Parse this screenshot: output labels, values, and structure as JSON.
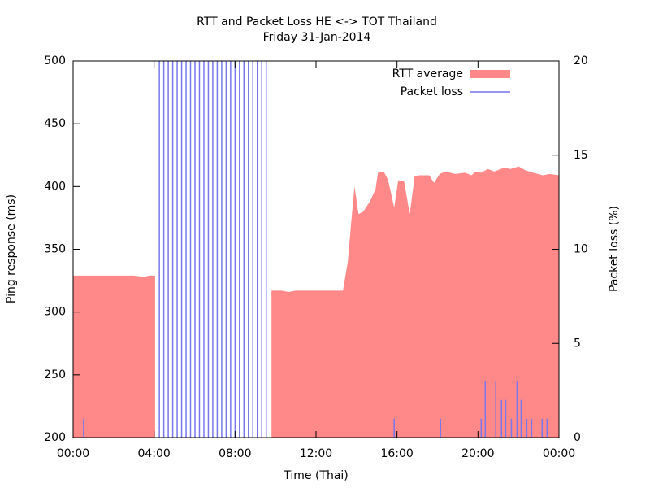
{
  "chart_data": {
    "type": "area",
    "title": "RTT and Packet Loss HE <-> TOT Thailand",
    "subtitle": "Friday 31-Jan-2014",
    "xlabel": "Time (Thai)",
    "ylabel": "Ping response (ms)",
    "y2label": "Packet loss (%)",
    "xlim": [
      0,
      24
    ],
    "xticks": [
      {
        "value": 0,
        "label": "00:00"
      },
      {
        "value": 4,
        "label": "04:00"
      },
      {
        "value": 8,
        "label": "08:00"
      },
      {
        "value": 12,
        "label": "12:00"
      },
      {
        "value": 16,
        "label": "16:00"
      },
      {
        "value": 20,
        "label": "20:00"
      },
      {
        "value": 24,
        "label": "00:00"
      }
    ],
    "ylim": [
      200,
      500
    ],
    "yticks": [
      200,
      250,
      300,
      350,
      400,
      450,
      500
    ],
    "y2lim": [
      0,
      20
    ],
    "y2ticks": [
      0,
      5,
      10,
      15,
      20
    ],
    "legend": "top-right",
    "series": [
      {
        "name": "RTT average",
        "color": "#ff8888",
        "type": "area",
        "x": [
          0,
          0.5,
          1,
          1.5,
          2,
          2.5,
          3,
          3.5,
          3.75,
          4.05,
          7,
          9.8,
          10.3,
          10.65,
          11,
          12,
          13.33,
          13.57,
          13.73,
          13.9,
          14.1,
          14.33,
          14.66,
          14.94,
          15.06,
          15.34,
          15.54,
          15.66,
          15.86,
          16.06,
          16.35,
          16.63,
          16.87,
          17.1,
          17.59,
          17.83,
          18.11,
          18.39,
          18.88,
          19.36,
          19.68,
          19.88,
          20.16,
          20.48,
          20.8,
          21.29,
          21.6,
          22.01,
          22.33,
          22.73,
          23.21,
          23.53,
          24
        ],
        "values": [
          329,
          329,
          329,
          329,
          329,
          329,
          329,
          328,
          329,
          329,
          null,
          317,
          317,
          316,
          317,
          317,
          317,
          340,
          370,
          400,
          378,
          380,
          388,
          398,
          411,
          412,
          406,
          398,
          383,
          405,
          404,
          378,
          408,
          409,
          409,
          403,
          410,
          412,
          410,
          411,
          409,
          412,
          411,
          414,
          412,
          415,
          414,
          416,
          413,
          411,
          409,
          410,
          409
        ]
      },
      {
        "name": "Packet loss",
        "color": "#7777ee",
        "type": "impulse",
        "axis": "y2",
        "x": [
          0.52,
          4.26,
          4.48,
          4.7,
          4.92,
          5.14,
          5.36,
          5.58,
          5.8,
          6.02,
          6.24,
          6.46,
          6.68,
          6.9,
          7.12,
          7.34,
          7.56,
          7.78,
          8.0,
          8.22,
          8.44,
          8.66,
          8.88,
          9.1,
          9.32,
          9.54,
          15.86,
          18.15,
          20.16,
          20.36,
          20.88,
          21.16,
          21.37,
          21.65,
          21.93,
          22.13,
          22.41,
          22.65,
          23.17,
          23.41
        ],
        "values": [
          1,
          20,
          20,
          20,
          20,
          20,
          20,
          20,
          20,
          20,
          20,
          20,
          20,
          20,
          20,
          20,
          20,
          20,
          20,
          20,
          20,
          20,
          20,
          20,
          20,
          20,
          1,
          1,
          1,
          3,
          3,
          2,
          2,
          1,
          3,
          2,
          1,
          1,
          1,
          1
        ]
      }
    ]
  }
}
